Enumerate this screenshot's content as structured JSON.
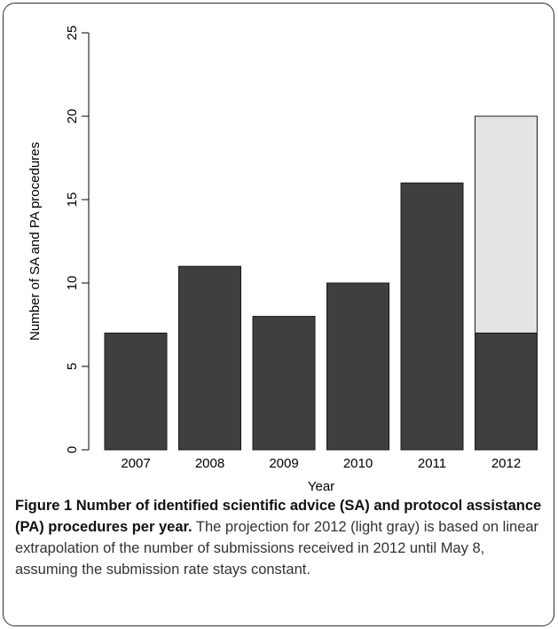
{
  "chart_data": {
    "type": "bar",
    "categories": [
      "2007",
      "2008",
      "2009",
      "2010",
      "2011",
      "2012"
    ],
    "series": [
      {
        "values": [
          7,
          11,
          8,
          10,
          16,
          7
        ],
        "color": "#3f3f3f"
      },
      {
        "values": [
          0,
          0,
          0,
          0,
          0,
          13
        ],
        "color": "#e4e4e4"
      }
    ],
    "stacked": true,
    "title": "",
    "xlabel": "Year",
    "ylabel": "Number of SA and PA procedures",
    "ylim": [
      0,
      25
    ],
    "yticks": [
      "0",
      "5",
      "10",
      "15",
      "20",
      "25"
    ],
    "grid": false,
    "legend": "none"
  },
  "caption": {
    "title": "Figure 1 Number of identified scientific advice (SA) and protocol assistance (PA) procedures per year.",
    "text": "The projection for 2012 (light gray) is based on linear extrapolation of the number of submissions received in 2012 until May 8, assuming the submission rate stays constant."
  }
}
